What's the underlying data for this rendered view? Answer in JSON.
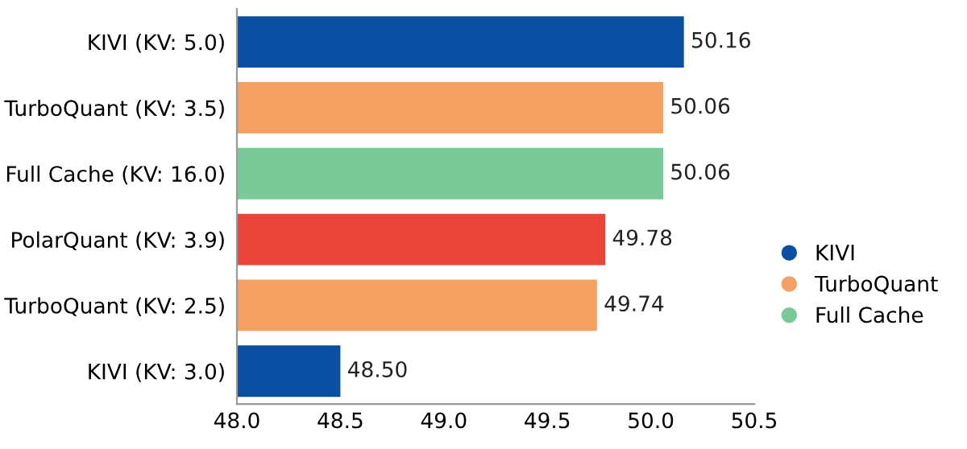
{
  "chart_data": {
    "type": "bar",
    "orientation": "horizontal",
    "categories": [
      "KIVI (KV: 5.0)",
      "TurboQuant (KV: 3.5)",
      "Full Cache (KV: 16.0)",
      "PolarQuant (KV: 3.9)",
      "TurboQuant (KV: 2.5)",
      "KIVI (KV: 3.0)"
    ],
    "series": [
      {
        "name": "KIVI",
        "color": "#0b4fa3",
        "values": [
          50.16,
          null,
          null,
          null,
          null,
          48.5
        ],
        "value_labels": [
          "50.16",
          null,
          null,
          null,
          null,
          "48.50"
        ]
      },
      {
        "name": "TurboQuant",
        "color": "#f4a063",
        "values": [
          null,
          50.06,
          null,
          null,
          49.74,
          null
        ],
        "value_labels": [
          null,
          "50.06",
          null,
          null,
          "49.74",
          null
        ]
      },
      {
        "name": "Full Cache",
        "color": "#79c999",
        "values": [
          null,
          null,
          50.06,
          null,
          null,
          null
        ],
        "value_labels": [
          null,
          null,
          "50.06",
          null,
          null,
          null
        ]
      },
      {
        "color": "#e9443a",
        "values": [
          null,
          null,
          null,
          49.78,
          null,
          null
        ],
        "value_labels": [
          null,
          null,
          null,
          "49.78",
          null,
          null
        ]
      }
    ],
    "xlim": [
      48.0,
      50.5
    ],
    "xticks": [
      {
        "value": 48.0,
        "label": "48.0"
      },
      {
        "value": 48.5,
        "label": "48.5"
      },
      {
        "value": 49.0,
        "label": "49.0"
      },
      {
        "value": 49.5,
        "label": "49.5"
      },
      {
        "value": 50.0,
        "label": "50.0"
      },
      {
        "value": 50.5,
        "label": "50.5"
      }
    ],
    "grid": false,
    "legend": "right",
    "marker": "circle"
  }
}
